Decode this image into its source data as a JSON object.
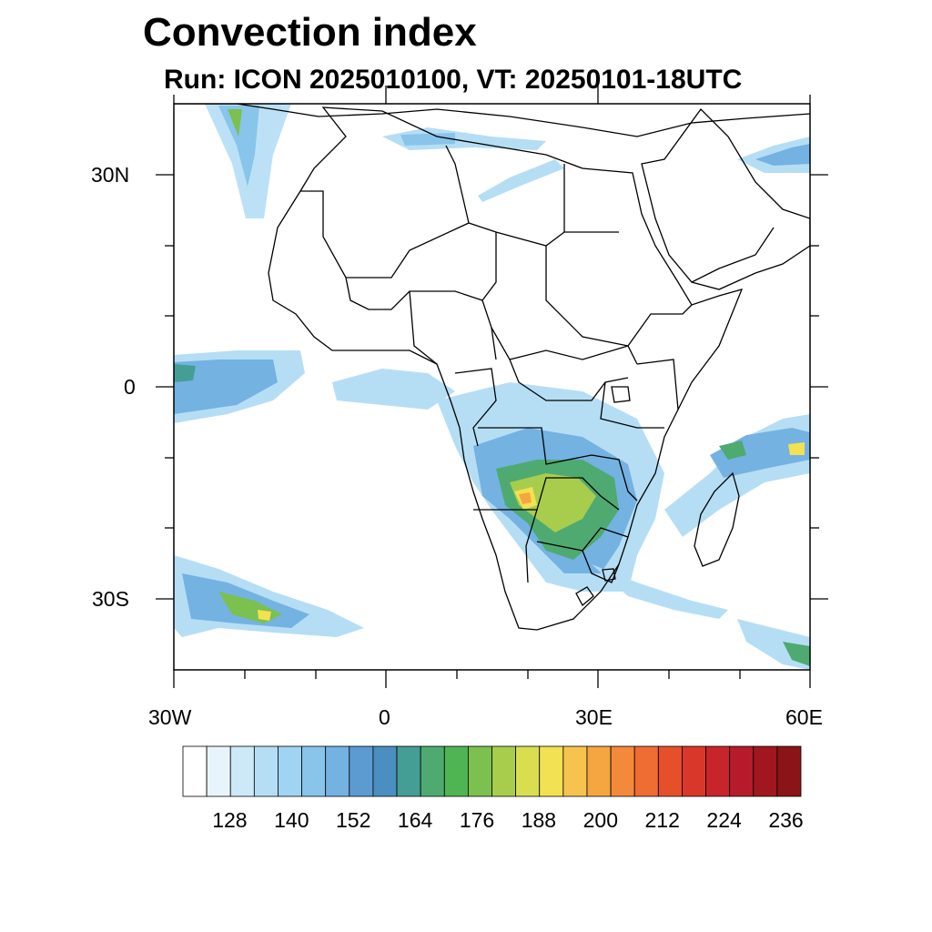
{
  "title": "Convection index",
  "subtitle": "Run: ICON 2025010100,  VT: 20250101-18UTC",
  "map": {
    "region": "Africa",
    "projection": "cylindrical-equidistant",
    "lon_range": [
      -30,
      60
    ],
    "lat_range": [
      -40,
      40
    ],
    "lat_labels": [
      "30N",
      "0",
      "30S"
    ],
    "lon_labels": [
      "30W",
      "0",
      "30E",
      "60E"
    ]
  },
  "colorbar": {
    "labels": [
      "128",
      "140",
      "152",
      "164",
      "176",
      "188",
      "200",
      "212",
      "224",
      "236"
    ],
    "colors": [
      "#ffffff",
      "#e8f4fb",
      "#cde8f7",
      "#b5def5",
      "#9fd4f2",
      "#89c4ea",
      "#74b2e2",
      "#5b9bd2",
      "#4a8fc0",
      "#459e96",
      "#4eaa71",
      "#4fb553",
      "#7cc04f",
      "#a8cd4d",
      "#d8de4f",
      "#f2e152",
      "#f6c44e",
      "#f5a640",
      "#f3893a",
      "#ef6c33",
      "#e5502b",
      "#d9372a",
      "#c8242c",
      "#b61b2b",
      "#a0171f",
      "#8a1418"
    ]
  }
}
